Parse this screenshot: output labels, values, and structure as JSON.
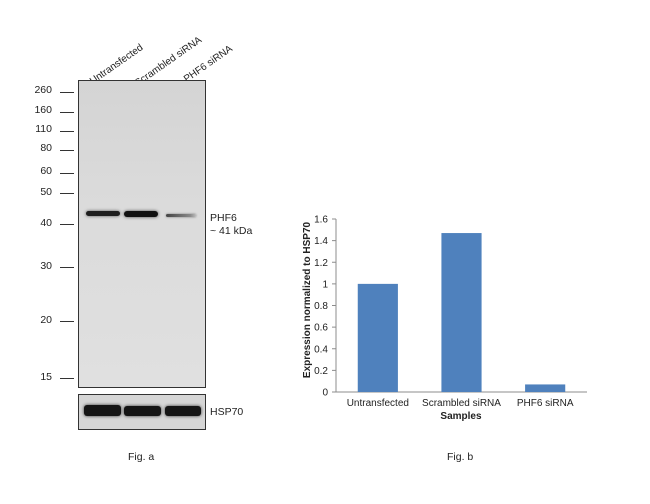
{
  "fig_a": {
    "caption": "Fig. a",
    "lanes": [
      "Untransfected",
      "Scrambled siRNA",
      "PHF6 siRNA"
    ],
    "markers": [
      "260",
      "160",
      "110",
      "80",
      "60",
      "50",
      "40",
      "30",
      "20",
      "15"
    ],
    "target_label": "PHF6",
    "target_size": "~ 41 kDa",
    "control_label": "HSP70"
  },
  "fig_b": {
    "caption": "Fig. b"
  },
  "chart_data": {
    "type": "bar",
    "categories": [
      "Untransfected",
      "Scrambled siRNA",
      "PHF6 siRNA"
    ],
    "values": [
      1.0,
      1.47,
      0.07
    ],
    "xlabel": "Samples",
    "ylabel": "Expression normalized to HSP70",
    "ylim": [
      0,
      1.6
    ],
    "yticks": [
      "0",
      "0.2",
      "0.4",
      "0.6",
      "0.8",
      "1",
      "1.2",
      "1.4",
      "1.6"
    ],
    "bar_color": "#4f81bd",
    "grid": false
  }
}
